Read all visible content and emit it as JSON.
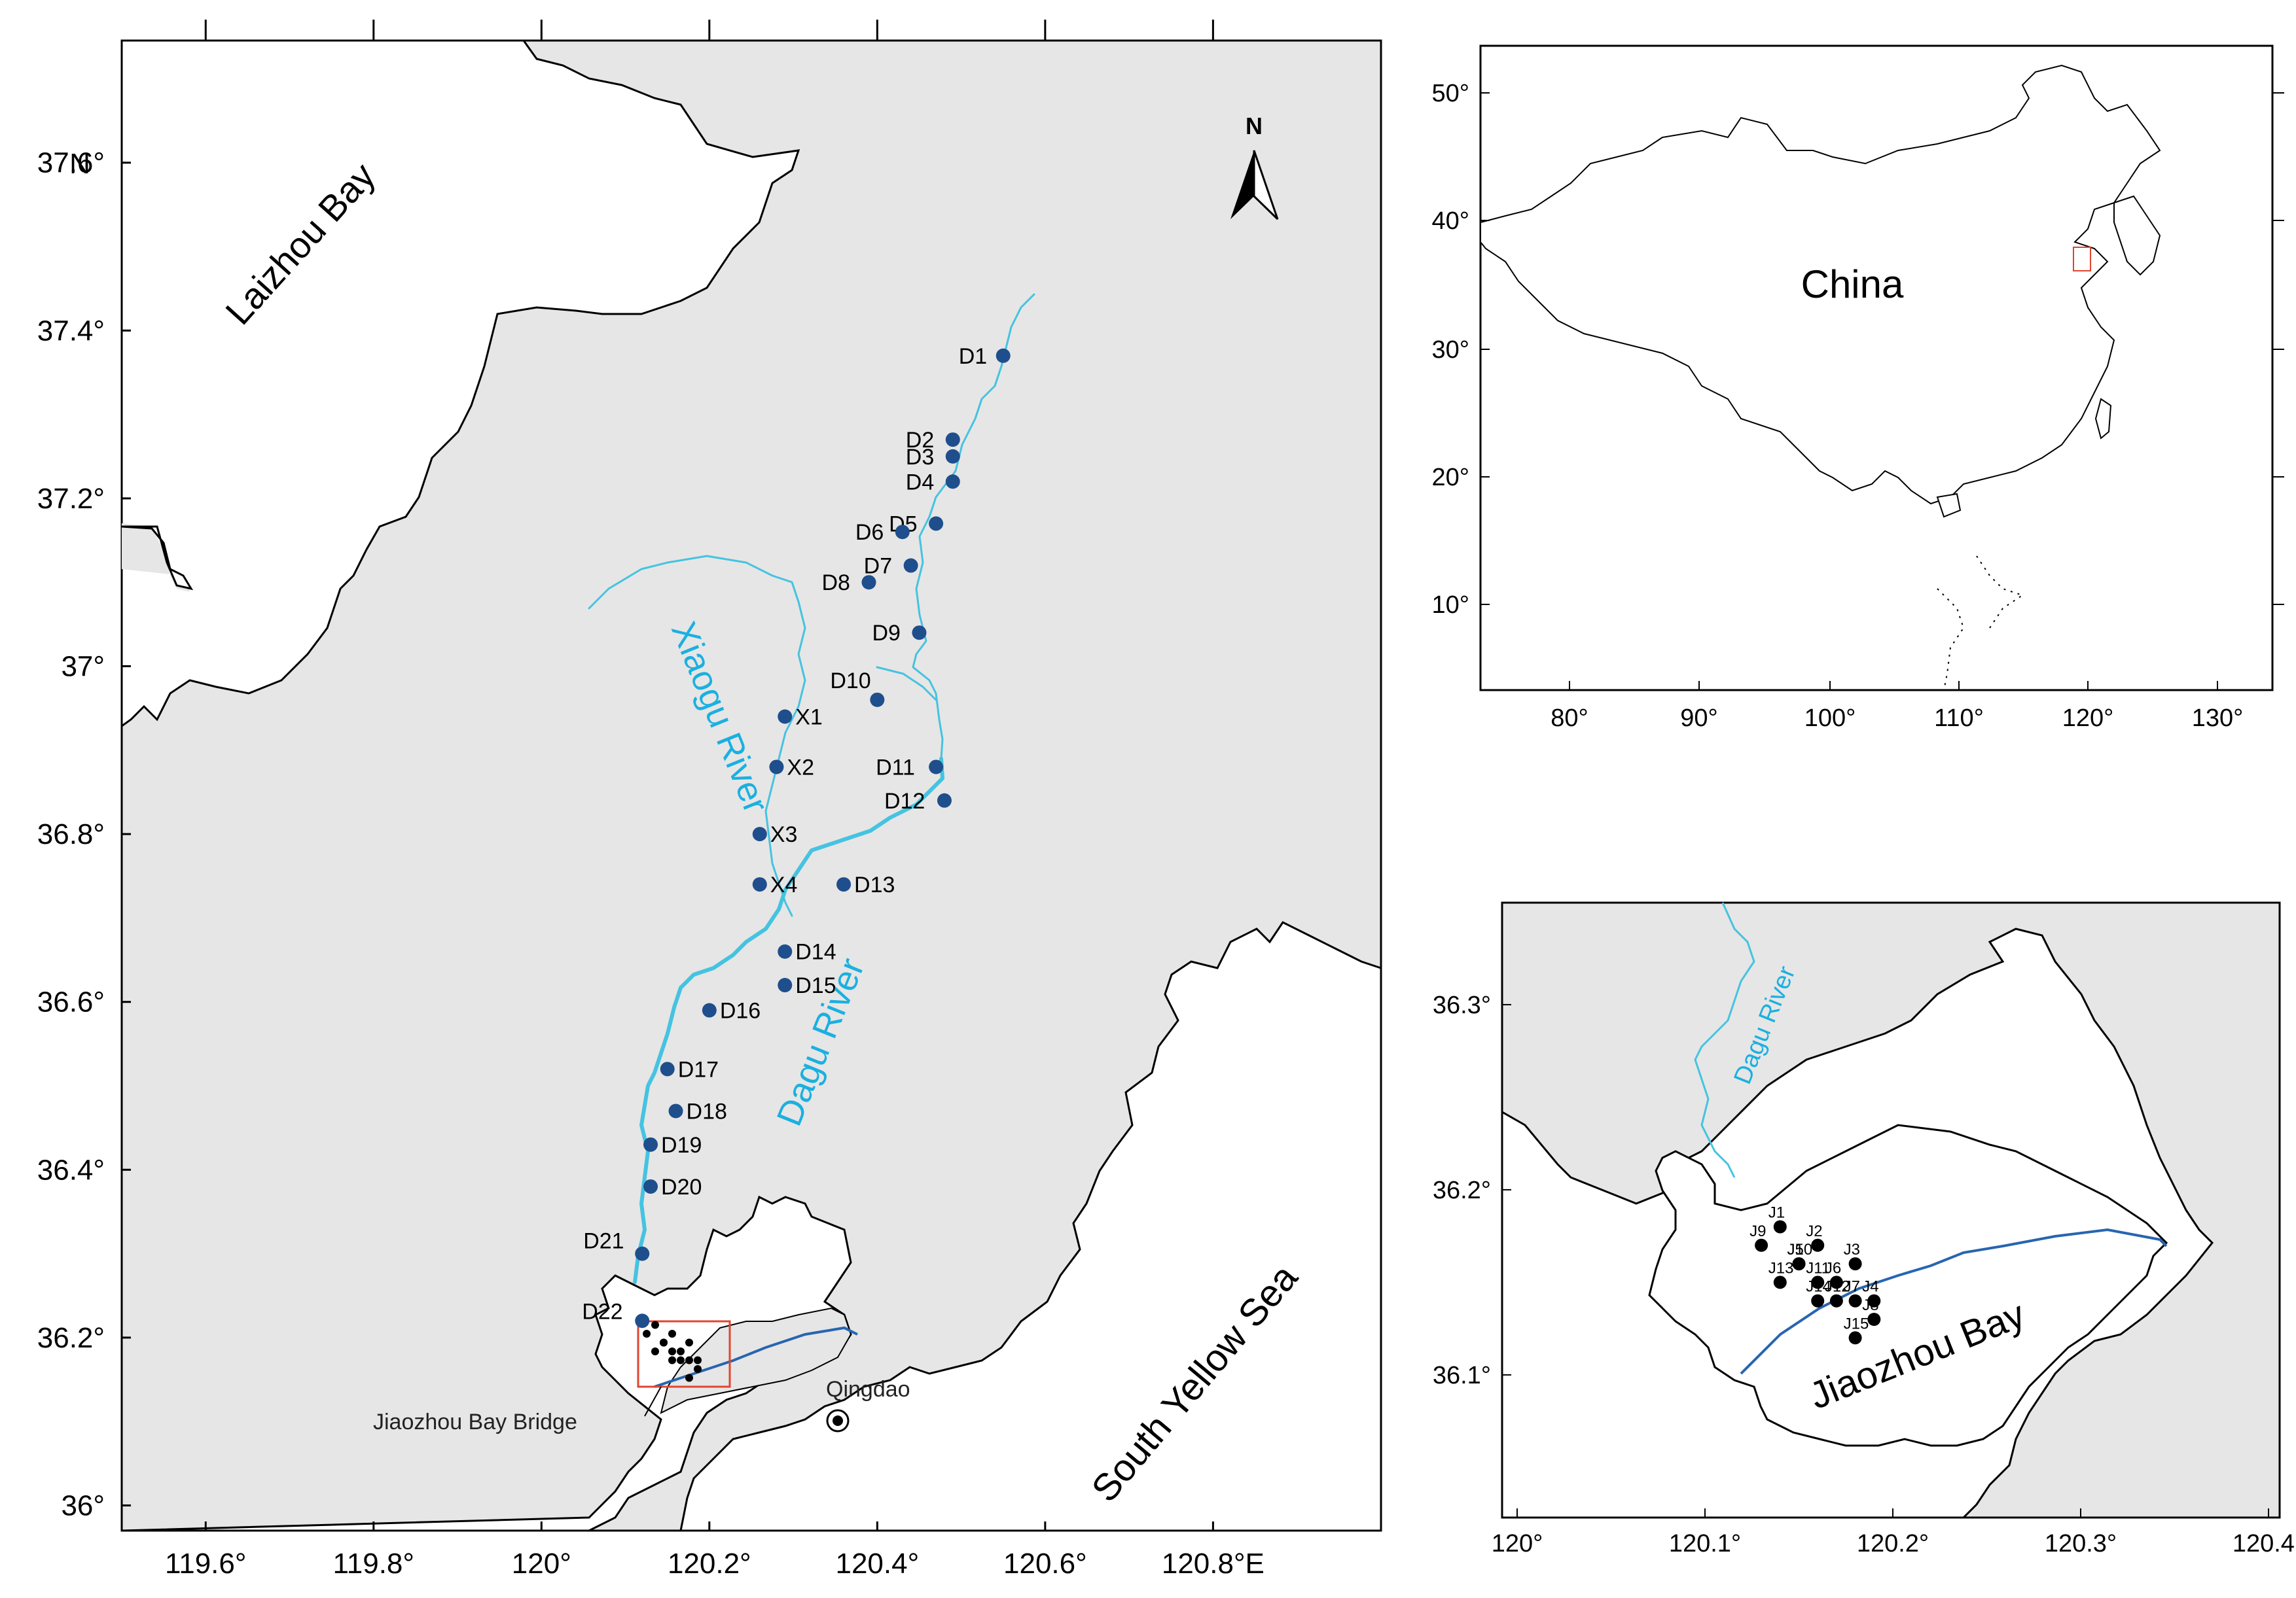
{
  "main_map": {
    "lat_ticks": [
      "37.6°",
      "37.4°",
      "37.2°",
      "37°",
      "36.8°",
      "36.6°",
      "36.4°",
      "36.2°",
      "36°"
    ],
    "lat_unit": "N",
    "lon_ticks": [
      "119.6°",
      "119.8°",
      "120°",
      "120.2°",
      "120.4°",
      "120.6°",
      "120.8°E"
    ],
    "north_label": "N",
    "water_labels": {
      "laizhou_bay": "Laizhou Bay",
      "south_yellow_sea": "South Yellow Sea",
      "xiaogu_river": "Xiaogu River",
      "dagu_river": "Dagu River"
    },
    "city_label": "Qingdao",
    "bridge_label": "Jiaozhou Bay Bridge",
    "stations": [
      {
        "id": "D1",
        "lon": 120.55,
        "lat": 37.37
      },
      {
        "id": "D2",
        "lon": 120.49,
        "lat": 37.27
      },
      {
        "id": "D3",
        "lon": 120.49,
        "lat": 37.25
      },
      {
        "id": "D4",
        "lon": 120.49,
        "lat": 37.22
      },
      {
        "id": "D5",
        "lon": 120.47,
        "lat": 37.17
      },
      {
        "id": "D6",
        "lon": 120.43,
        "lat": 37.16
      },
      {
        "id": "D7",
        "lon": 120.44,
        "lat": 37.12
      },
      {
        "id": "D8",
        "lon": 120.39,
        "lat": 37.1
      },
      {
        "id": "D9",
        "lon": 120.45,
        "lat": 37.04
      },
      {
        "id": "D10",
        "lon": 120.4,
        "lat": 36.96
      },
      {
        "id": "X1",
        "lon": 120.29,
        "lat": 36.94
      },
      {
        "id": "X2",
        "lon": 120.28,
        "lat": 36.88
      },
      {
        "id": "D11",
        "lon": 120.47,
        "lat": 36.88
      },
      {
        "id": "D12",
        "lon": 120.48,
        "lat": 36.84
      },
      {
        "id": "X3",
        "lon": 120.26,
        "lat": 36.8
      },
      {
        "id": "X4",
        "lon": 120.26,
        "lat": 36.74
      },
      {
        "id": "D13",
        "lon": 120.36,
        "lat": 36.74
      },
      {
        "id": "D14",
        "lon": 120.29,
        "lat": 36.66
      },
      {
        "id": "D15",
        "lon": 120.29,
        "lat": 36.62
      },
      {
        "id": "D16",
        "lon": 120.2,
        "lat": 36.59
      },
      {
        "id": "D17",
        "lon": 120.15,
        "lat": 36.52
      },
      {
        "id": "D18",
        "lon": 120.16,
        "lat": 36.47
      },
      {
        "id": "D19",
        "lon": 120.13,
        "lat": 36.43
      },
      {
        "id": "D20",
        "lon": 120.13,
        "lat": 36.38
      },
      {
        "id": "D21",
        "lon": 120.12,
        "lat": 36.3
      },
      {
        "id": "D22",
        "lon": 120.12,
        "lat": 36.22
      }
    ]
  },
  "inset_china": {
    "lat_ticks": [
      "50°",
      "40°",
      "30°",
      "20°",
      "10°"
    ],
    "lon_ticks": [
      "80°",
      "90°",
      "100°",
      "110°",
      "120°",
      "130°"
    ],
    "country_label": "China",
    "colors": {
      "locator_box": "#e0452f"
    }
  },
  "inset_bay": {
    "lat_ticks": [
      "36.3°",
      "36.2°",
      "36.1°"
    ],
    "lon_ticks": [
      "120°",
      "120.1°",
      "120.2°",
      "120.3°",
      "120.4°"
    ],
    "bay_label": "Jiaozhou Bay",
    "river_label": "Dagu River",
    "stations": [
      {
        "id": "J1",
        "lon": 120.14,
        "lat": 36.18
      },
      {
        "id": "J2",
        "lon": 120.16,
        "lat": 36.17
      },
      {
        "id": "J3",
        "lon": 120.18,
        "lat": 36.16
      },
      {
        "id": "J4",
        "lon": 120.19,
        "lat": 36.14
      },
      {
        "id": "J5",
        "lon": 120.15,
        "lat": 36.16
      },
      {
        "id": "J6",
        "lon": 120.17,
        "lat": 36.15
      },
      {
        "id": "J7",
        "lon": 120.18,
        "lat": 36.14
      },
      {
        "id": "J8",
        "lon": 120.19,
        "lat": 36.13
      },
      {
        "id": "J9",
        "lon": 120.13,
        "lat": 36.17
      },
      {
        "id": "J10",
        "lon": 120.15,
        "lat": 36.16
      },
      {
        "id": "J11",
        "lon": 120.16,
        "lat": 36.15
      },
      {
        "id": "J12",
        "lon": 120.17,
        "lat": 36.14
      },
      {
        "id": "J13",
        "lon": 120.14,
        "lat": 36.15
      },
      {
        "id": "J14",
        "lon": 120.16,
        "lat": 36.14
      },
      {
        "id": "J15",
        "lon": 120.18,
        "lat": 36.12
      }
    ]
  },
  "colors": {
    "sea": "#e6e6e6",
    "land": "#ffffff",
    "coast": "#000000",
    "river_light": "#45c3e0",
    "river_label": "#1ab0e0",
    "station_main": "#1f4e8c",
    "station_bay": "#000000",
    "bridge": "#2765b0",
    "frame_red": "#e0452f"
  }
}
